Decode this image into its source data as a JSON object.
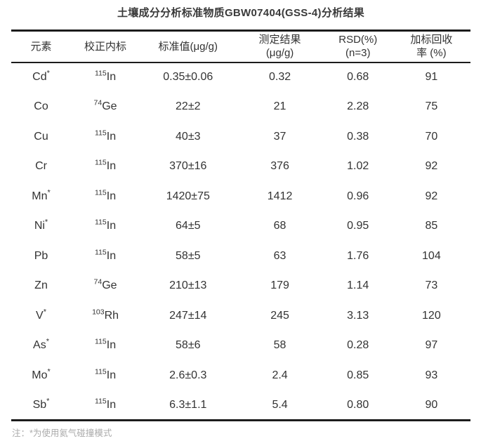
{
  "page": {
    "title": "土壤成分分析标准物质GBW07404(GSS-4)分析结果",
    "note": "注：*为使用氦气碰撞模式"
  },
  "colors": {
    "text": "#333333",
    "rule": "#1c1c1c",
    "note": "#ababab"
  },
  "table": {
    "column_widths_percent": [
      13,
      15,
      21,
      19,
      15,
      17
    ],
    "columns": [
      {
        "lines": [
          "元素"
        ]
      },
      {
        "lines": [
          "校正内标"
        ]
      },
      {
        "lines": [
          "标准值(μg/g)"
        ]
      },
      {
        "lines": [
          "测定结果",
          "(μg/g)"
        ]
      },
      {
        "lines": [
          "RSD(%)",
          "(n=3)"
        ]
      },
      {
        "lines": [
          "加标回收",
          "率 (%)"
        ]
      }
    ],
    "rows": [
      {
        "element": "Cd",
        "star": "*",
        "mass": "115",
        "symbol": "In",
        "standard": "0.35±0.06",
        "result": "0.32",
        "rsd": "0.68",
        "recovery": "91"
      },
      {
        "element": "Co",
        "star": "",
        "mass": "74",
        "symbol": "Ge",
        "standard": "22±2",
        "result": "21",
        "rsd": "2.28",
        "recovery": "75"
      },
      {
        "element": "Cu",
        "star": "",
        "mass": "115",
        "symbol": "In",
        "standard": "40±3",
        "result": "37",
        "rsd": "0.38",
        "recovery": "70"
      },
      {
        "element": "Cr",
        "star": "",
        "mass": "115",
        "symbol": "In",
        "standard": "370±16",
        "result": "376",
        "rsd": "1.02",
        "recovery": "92"
      },
      {
        "element": "Mn",
        "star": "*",
        "mass": "115",
        "symbol": "In",
        "standard": "1420±75",
        "result": "1412",
        "rsd": "0.96",
        "recovery": "92"
      },
      {
        "element": "Ni",
        "star": "*",
        "mass": "115",
        "symbol": "In",
        "standard": "64±5",
        "result": "68",
        "rsd": "0.95",
        "recovery": "85"
      },
      {
        "element": "Pb",
        "star": "",
        "mass": "115",
        "symbol": "In",
        "standard": "58±5",
        "result": "63",
        "rsd": "1.76",
        "recovery": "104"
      },
      {
        "element": "Zn",
        "star": "",
        "mass": "74",
        "symbol": "Ge",
        "standard": "210±13",
        "result": "179",
        "rsd": "1.14",
        "recovery": "73"
      },
      {
        "element": "V",
        "star": "*",
        "mass": "103",
        "symbol": "Rh",
        "standard": "247±14",
        "result": "245",
        "rsd": "3.13",
        "recovery": "120"
      },
      {
        "element": "As",
        "star": "*",
        "mass": "115",
        "symbol": "In",
        "standard": "58±6",
        "result": "58",
        "rsd": "0.28",
        "recovery": "97"
      },
      {
        "element": "Mo",
        "star": "*",
        "mass": "115",
        "symbol": "In",
        "standard": "2.6±0.3",
        "result": "2.4",
        "rsd": "0.85",
        "recovery": "93"
      },
      {
        "element": "Sb",
        "star": "*",
        "mass": "115",
        "symbol": "In",
        "standard": "6.3±1.1",
        "result": "5.4",
        "rsd": "0.80",
        "recovery": "90"
      }
    ]
  }
}
